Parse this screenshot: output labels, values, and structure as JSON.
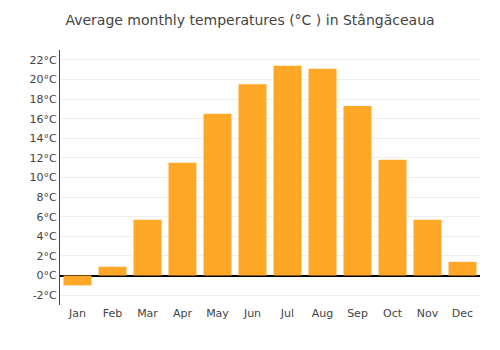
{
  "chart_data": {
    "type": "bar",
    "title": "Average monthly temperatures (°C ) in Stângăceaua",
    "categories": [
      "Jan",
      "Feb",
      "Mar",
      "Apr",
      "May",
      "Jun",
      "Jul",
      "Aug",
      "Sep",
      "Oct",
      "Nov",
      "Dec"
    ],
    "values": [
      -1.0,
      0.9,
      5.7,
      11.5,
      16.5,
      19.5,
      21.4,
      21.1,
      17.3,
      11.8,
      5.7,
      1.4
    ],
    "color": "#FFA726",
    "ylim": [
      -3,
      23
    ],
    "yticks": [
      {
        "value": -2,
        "label": "-2°C"
      },
      {
        "value": 0,
        "label": "0°C"
      },
      {
        "value": 2,
        "label": "2°C"
      },
      {
        "value": 4,
        "label": "4°C"
      },
      {
        "value": 6,
        "label": "6°C"
      },
      {
        "value": 8,
        "label": "8°C"
      },
      {
        "value": 10,
        "label": "10°C"
      },
      {
        "value": 12,
        "label": "12°C"
      },
      {
        "value": 14,
        "label": "14°C"
      },
      {
        "value": 16,
        "label": "16°C"
      },
      {
        "value": 18,
        "label": "18°C"
      },
      {
        "value": 20,
        "label": "20°C"
      },
      {
        "value": 22,
        "label": "22°C"
      }
    ],
    "grid": true
  }
}
